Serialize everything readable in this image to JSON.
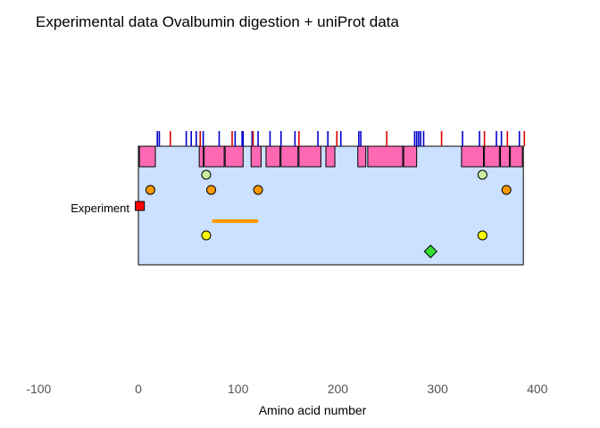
{
  "chart_data": {
    "type": "scatter",
    "title": "Experimental data Ovalbumin digestion + uniProt data",
    "xlabel": "Amino acid number",
    "ylabel": "",
    "xlim": [
      -100,
      400
    ],
    "x_ticks": [
      -100,
      0,
      100,
      200,
      300,
      400
    ],
    "row_label": "Experiment",
    "sequence_range": [
      1,
      386
    ],
    "colors": {
      "panel": "#cce0ff",
      "region": "#ff69b4",
      "tick_blue": "#0000cc",
      "tick_red": "#dd0000",
      "label_marker": "#ff0000",
      "orange": "#ff9900",
      "pale_green": "#c8f0a0",
      "yellow": "#ffff00",
      "green": "#33dd33"
    },
    "blue_ticks": [
      19,
      21,
      48,
      53,
      58,
      65,
      81,
      97,
      104,
      105,
      114,
      120,
      132,
      143,
      157,
      180,
      190,
      203,
      221,
      223,
      277,
      279,
      281,
      283,
      286,
      325,
      342,
      359,
      364,
      382
    ],
    "red_ticks": [
      32,
      62,
      94,
      115,
      161,
      199,
      249,
      304,
      347,
      370,
      387
    ],
    "regions": [
      [
        1,
        17
      ],
      [
        61,
        65
      ],
      [
        66,
        86
      ],
      [
        87,
        105
      ],
      [
        113,
        123
      ],
      [
        128,
        142
      ],
      [
        143,
        160
      ],
      [
        161,
        183
      ],
      [
        188,
        197
      ],
      [
        220,
        228
      ],
      [
        230,
        265
      ],
      [
        266,
        279
      ],
      [
        324,
        346
      ],
      [
        347,
        362
      ],
      [
        363,
        372
      ],
      [
        373,
        385
      ]
    ],
    "points": [
      {
        "x": 12,
        "level": 3,
        "shape": "circle",
        "color": "orange"
      },
      {
        "x": 73,
        "level": 3,
        "shape": "circle",
        "color": "orange"
      },
      {
        "x": 120,
        "level": 3,
        "shape": "circle",
        "color": "orange"
      },
      {
        "x": 369,
        "level": 3,
        "shape": "circle",
        "color": "orange"
      },
      {
        "x": 68,
        "level": 2,
        "shape": "circle",
        "color": "pale_green"
      },
      {
        "x": 345,
        "level": 2,
        "shape": "circle",
        "color": "pale_green"
      },
      {
        "x": 68,
        "level": 6,
        "shape": "circle",
        "color": "yellow"
      },
      {
        "x": 345,
        "level": 6,
        "shape": "circle",
        "color": "yellow"
      },
      {
        "x": 293,
        "level": 7,
        "shape": "diamond",
        "color": "green"
      }
    ],
    "segments": [
      {
        "x0": 74,
        "x1": 120,
        "level": 5,
        "color": "orange"
      }
    ],
    "label_marker_x": 1
  }
}
